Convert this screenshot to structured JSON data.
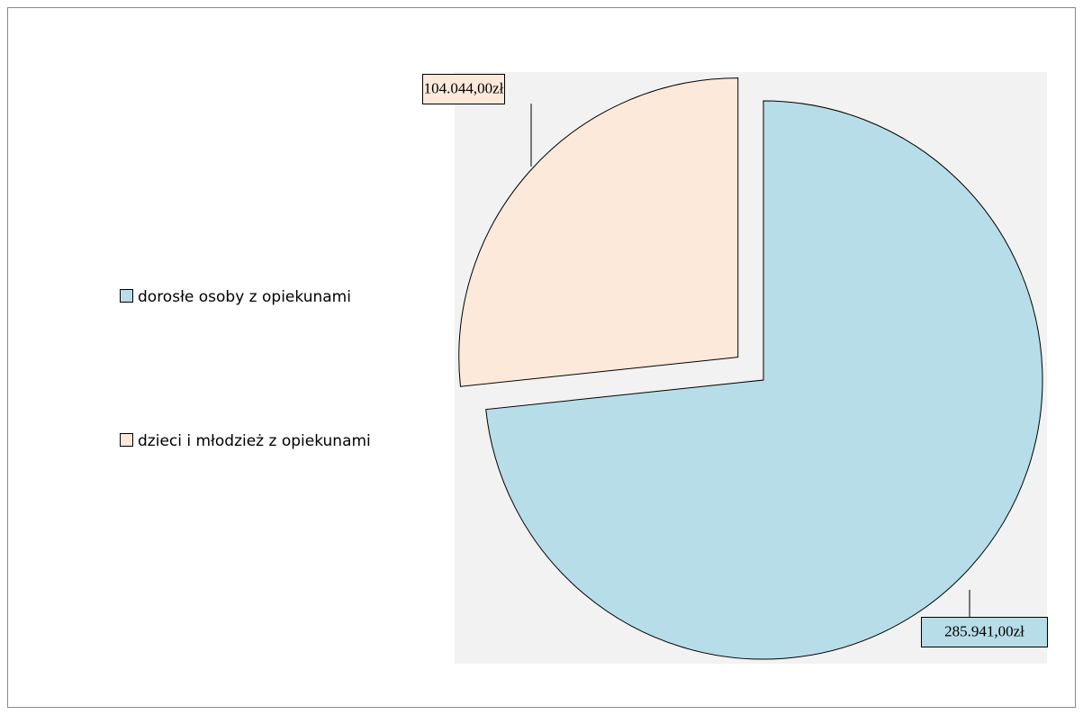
{
  "chart_data": {
    "type": "pie",
    "categories": [
      "dorosłe osoby z opiekunami",
      "dzieci i młodzież z opiekunami"
    ],
    "values": [
      285941,
      104044
    ],
    "value_labels": [
      "285.941,00zł",
      "104.044,00zł"
    ],
    "colors": [
      "#b7dde8",
      "#fde9d9"
    ],
    "legend": "left"
  }
}
